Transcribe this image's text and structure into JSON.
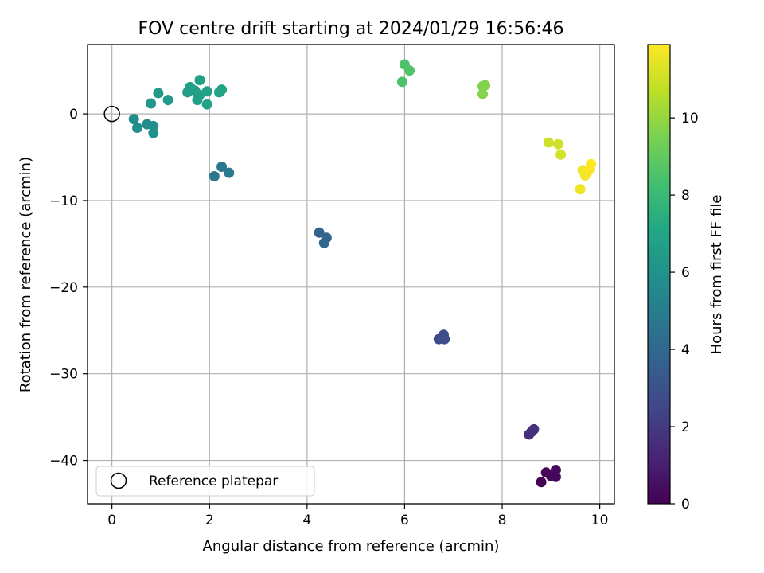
{
  "chart_data": {
    "type": "scatter",
    "title": "FOV centre drift starting at 2024/01/29 16:56:46",
    "xlabel": "Angular distance from reference (arcmin)",
    "ylabel": "Rotation from reference (arcmin)",
    "xlim": [
      -0.5,
      10.3
    ],
    "ylim": [
      -45,
      8
    ],
    "x_ticks": [
      0,
      2,
      4,
      6,
      8,
      10
    ],
    "y_ticks": [
      0,
      -10,
      -20,
      -30,
      -40
    ],
    "x_tick_labels": [
      "0",
      "2",
      "4",
      "6",
      "8",
      "10"
    ],
    "y_tick_labels": [
      "0",
      "−10",
      "−20",
      "−30",
      "−40"
    ],
    "grid": true,
    "colormap": "viridis",
    "colorbar": {
      "label": "Hours from first FF file",
      "range": [
        0,
        11.9
      ],
      "ticks": [
        0,
        2,
        4,
        6,
        8,
        10
      ],
      "tick_labels": [
        "0",
        "2",
        "4",
        "6",
        "8",
        "10"
      ]
    },
    "reference": {
      "x": 0,
      "y": 0,
      "legend_label": "Reference platepar"
    },
    "legend_position": "lower-left",
    "series": [
      {
        "points": [
          {
            "x": 8.8,
            "y": -42.5,
            "t": 0.0
          },
          {
            "x": 8.9,
            "y": -41.4,
            "t": 0.1
          },
          {
            "x": 9.0,
            "y": -41.8,
            "t": 0.15
          },
          {
            "x": 9.1,
            "y": -41.9,
            "t": 0.2
          },
          {
            "x": 9.1,
            "y": -41.1,
            "t": 0.25
          },
          {
            "x": 8.55,
            "y": -37.0,
            "t": 1.5
          },
          {
            "x": 8.6,
            "y": -36.7,
            "t": 1.55
          },
          {
            "x": 8.65,
            "y": -36.4,
            "t": 1.6
          },
          {
            "x": 6.7,
            "y": -26.0,
            "t": 2.7
          },
          {
            "x": 6.8,
            "y": -25.5,
            "t": 2.75
          },
          {
            "x": 6.82,
            "y": -26.0,
            "t": 2.8
          },
          {
            "x": 4.25,
            "y": -13.7,
            "t": 3.8
          },
          {
            "x": 4.4,
            "y": -14.3,
            "t": 3.85
          },
          {
            "x": 4.35,
            "y": -14.9,
            "t": 3.9
          },
          {
            "x": 2.1,
            "y": -7.2,
            "t": 4.7
          },
          {
            "x": 2.25,
            "y": -6.1,
            "t": 4.75
          },
          {
            "x": 2.4,
            "y": -6.8,
            "t": 4.8
          },
          {
            "x": 0.45,
            "y": -0.6,
            "t": 5.7
          },
          {
            "x": 0.52,
            "y": -1.6,
            "t": 5.75
          },
          {
            "x": 0.72,
            "y": -1.2,
            "t": 5.8
          },
          {
            "x": 0.85,
            "y": -1.4,
            "t": 5.85
          },
          {
            "x": 0.85,
            "y": -2.2,
            "t": 5.9
          },
          {
            "x": 0.8,
            "y": 1.2,
            "t": 6.3
          },
          {
            "x": 0.95,
            "y": 2.4,
            "t": 6.35
          },
          {
            "x": 1.15,
            "y": 1.6,
            "t": 6.4
          },
          {
            "x": 1.55,
            "y": 2.5,
            "t": 6.6
          },
          {
            "x": 1.6,
            "y": 3.1,
            "t": 6.65
          },
          {
            "x": 1.7,
            "y": 2.7,
            "t": 6.7
          },
          {
            "x": 1.75,
            "y": 1.6,
            "t": 6.72
          },
          {
            "x": 1.8,
            "y": 2.2,
            "t": 6.75
          },
          {
            "x": 1.8,
            "y": 3.9,
            "t": 6.8
          },
          {
            "x": 1.95,
            "y": 1.1,
            "t": 6.85
          },
          {
            "x": 1.95,
            "y": 2.6,
            "t": 6.9
          },
          {
            "x": 2.2,
            "y": 2.5,
            "t": 6.95
          },
          {
            "x": 2.25,
            "y": 2.8,
            "t": 7.0
          },
          {
            "x": 5.95,
            "y": 3.7,
            "t": 8.5
          },
          {
            "x": 6.0,
            "y": 5.7,
            "t": 8.55
          },
          {
            "x": 6.1,
            "y": 5.0,
            "t": 8.6
          },
          {
            "x": 7.6,
            "y": 3.2,
            "t": 9.6
          },
          {
            "x": 7.65,
            "y": 3.3,
            "t": 9.65
          },
          {
            "x": 7.6,
            "y": 2.3,
            "t": 9.7
          },
          {
            "x": 8.95,
            "y": -3.3,
            "t": 11.0
          },
          {
            "x": 9.15,
            "y": -3.5,
            "t": 11.05
          },
          {
            "x": 9.2,
            "y": -4.7,
            "t": 11.1
          },
          {
            "x": 9.6,
            "y": -8.7,
            "t": 11.6
          },
          {
            "x": 9.65,
            "y": -6.5,
            "t": 11.65
          },
          {
            "x": 9.7,
            "y": -7.1,
            "t": 11.7
          },
          {
            "x": 9.75,
            "y": -6.7,
            "t": 11.75
          },
          {
            "x": 9.8,
            "y": -6.4,
            "t": 11.8
          },
          {
            "x": 9.82,
            "y": -5.8,
            "t": 11.9
          }
        ]
      }
    ]
  }
}
